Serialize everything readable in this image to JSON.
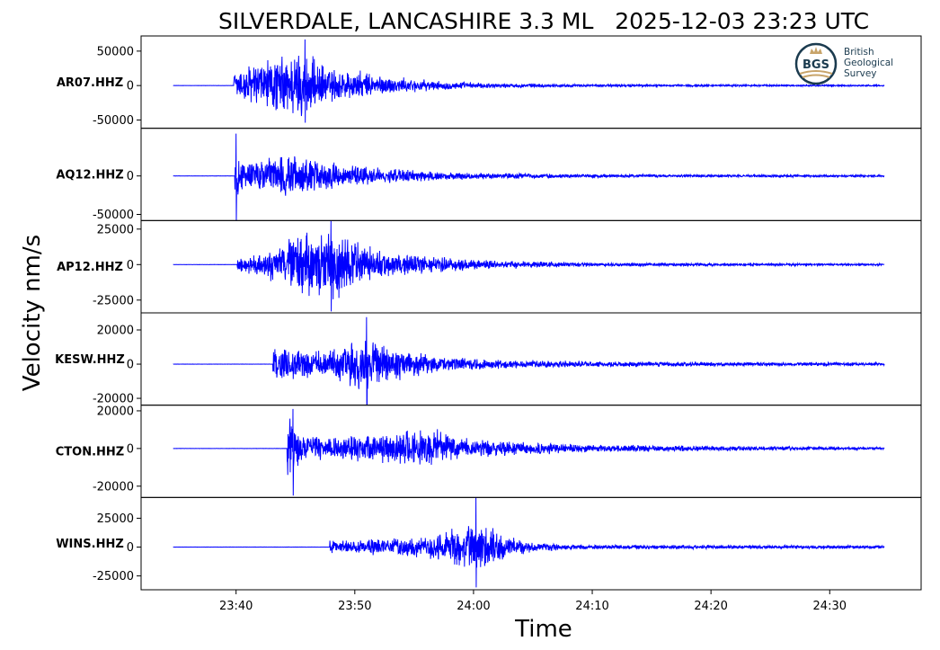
{
  "chart_data": {
    "type": "line",
    "title": "SILVERDALE, LANCASHIRE 3.3 ML   2025-12-03 23:23 UTC",
    "xlabel": "Time",
    "ylabel": "Velocity nm/s",
    "x_ticks": [
      "23:40",
      "23:50",
      "24:00",
      "24:10",
      "24:20",
      "24:30"
    ],
    "x_tick_minutes": [
      40,
      50,
      60,
      70,
      80,
      90
    ],
    "x_range_minutes": [
      32.0,
      97.7
    ],
    "trace_start_minute": 34.7,
    "trace_end_minute": 94.6,
    "line_color": "#0000ff",
    "grid": false,
    "panels": [
      {
        "station": "AR07.HHZ",
        "ylim": [
          -62000,
          72000
        ],
        "y_ticks": [
          50000,
          0,
          -50000
        ],
        "y_tick_labels": [
          "50000",
          "0",
          "-50000"
        ],
        "onset_minute": 39.8,
        "peak_minute": 45.8,
        "peak_positive": 67000,
        "peak_negative": -54000,
        "envelope": [
          [
            39.8,
            25000
          ],
          [
            41.5,
            38000
          ],
          [
            43.5,
            46000
          ],
          [
            45.5,
            58000
          ],
          [
            47.5,
            30000
          ],
          [
            50,
            24000
          ],
          [
            53,
            14000
          ],
          [
            57,
            7000
          ],
          [
            62,
            3500
          ],
          [
            70,
            2000
          ],
          [
            94.6,
            1200
          ]
        ]
      },
      {
        "station": "AQ12.HHZ",
        "ylim": [
          -58000,
          62000
        ],
        "y_ticks": [
          0,
          -50000
        ],
        "y_tick_labels": [
          "0",
          "-50000"
        ],
        "onset_minute": 39.9,
        "peak_minute": 40.0,
        "peak_positive": 55000,
        "peak_negative": -60000,
        "envelope": [
          [
            39.9,
            30000
          ],
          [
            41.5,
            18000
          ],
          [
            43.5,
            30000
          ],
          [
            45.5,
            26000
          ],
          [
            48,
            20000
          ],
          [
            52,
            12000
          ],
          [
            56,
            7000
          ],
          [
            62,
            4000
          ],
          [
            70,
            2500
          ],
          [
            94.6,
            1500
          ]
        ]
      },
      {
        "station": "AP12.HHZ",
        "ylim": [
          -34000,
          31000
        ],
        "y_ticks": [
          25000,
          0,
          -25000
        ],
        "y_tick_labels": [
          "25000",
          "0",
          "-25000"
        ],
        "onset_minute": 40.1,
        "peak_minute": 48.0,
        "peak_positive": 31000,
        "peak_negative": -33000,
        "envelope": [
          [
            40.1,
            5000
          ],
          [
            42,
            8000
          ],
          [
            44,
            20000
          ],
          [
            46.5,
            24000
          ],
          [
            48.5,
            25000
          ],
          [
            50.5,
            16000
          ],
          [
            53,
            10000
          ],
          [
            57,
            6000
          ],
          [
            62,
            3000
          ],
          [
            70,
            1500
          ],
          [
            94.6,
            700
          ]
        ]
      },
      {
        "station": "KESW.HHZ",
        "ylim": [
          -24000,
          30000
        ],
        "y_ticks": [
          20000,
          0,
          -20000
        ],
        "y_tick_labels": [
          "20000",
          "0",
          "-20000"
        ],
        "onset_minute": 43.1,
        "peak_minute": 51.0,
        "peak_positive": 27500,
        "peak_negative": -24000,
        "envelope": [
          [
            43.1,
            14000
          ],
          [
            45,
            10000
          ],
          [
            48,
            9000
          ],
          [
            50.5,
            17000
          ],
          [
            52.5,
            12000
          ],
          [
            55,
            8000
          ],
          [
            58,
            5000
          ],
          [
            62,
            3000
          ],
          [
            70,
            1800
          ],
          [
            94.6,
            900
          ]
        ]
      },
      {
        "station": "CTON.HHZ",
        "ylim": [
          -26000,
          23000
        ],
        "y_ticks": [
          20000,
          0,
          -20000
        ],
        "y_tick_labels": [
          "20000",
          "0",
          "-20000"
        ],
        "onset_minute": 44.3,
        "peak_minute": 44.8,
        "peak_positive": 21000,
        "peak_negative": -25000,
        "envelope": [
          [
            44.3,
            20000
          ],
          [
            45.2,
            10000
          ],
          [
            47,
            6500
          ],
          [
            52,
            8000
          ],
          [
            56.5,
            12000
          ],
          [
            59,
            6000
          ],
          [
            63,
            4000
          ],
          [
            70,
            2200
          ],
          [
            80,
            1500
          ],
          [
            94.6,
            800
          ]
        ]
      },
      {
        "station": "WINS.HHZ",
        "ylim": [
          -37000,
          43000
        ],
        "y_ticks": [
          25000,
          0,
          -25000
        ],
        "y_tick_labels": [
          "25000",
          "0",
          "-25000"
        ],
        "onset_minute": 47.9,
        "peak_minute": 60.2,
        "peak_positive": 43000,
        "peak_negative": -35000,
        "envelope": [
          [
            47.9,
            6000
          ],
          [
            50,
            7000
          ],
          [
            53,
            8500
          ],
          [
            56,
            10000
          ],
          [
            58.5,
            20000
          ],
          [
            60.5,
            24000
          ],
          [
            62.5,
            12000
          ],
          [
            65,
            4000
          ],
          [
            70,
            2200
          ],
          [
            94.6,
            1500
          ]
        ]
      }
    ],
    "logo": {
      "emblem": "BGS",
      "lines": [
        "British",
        "Geological",
        "Survey"
      ]
    }
  }
}
